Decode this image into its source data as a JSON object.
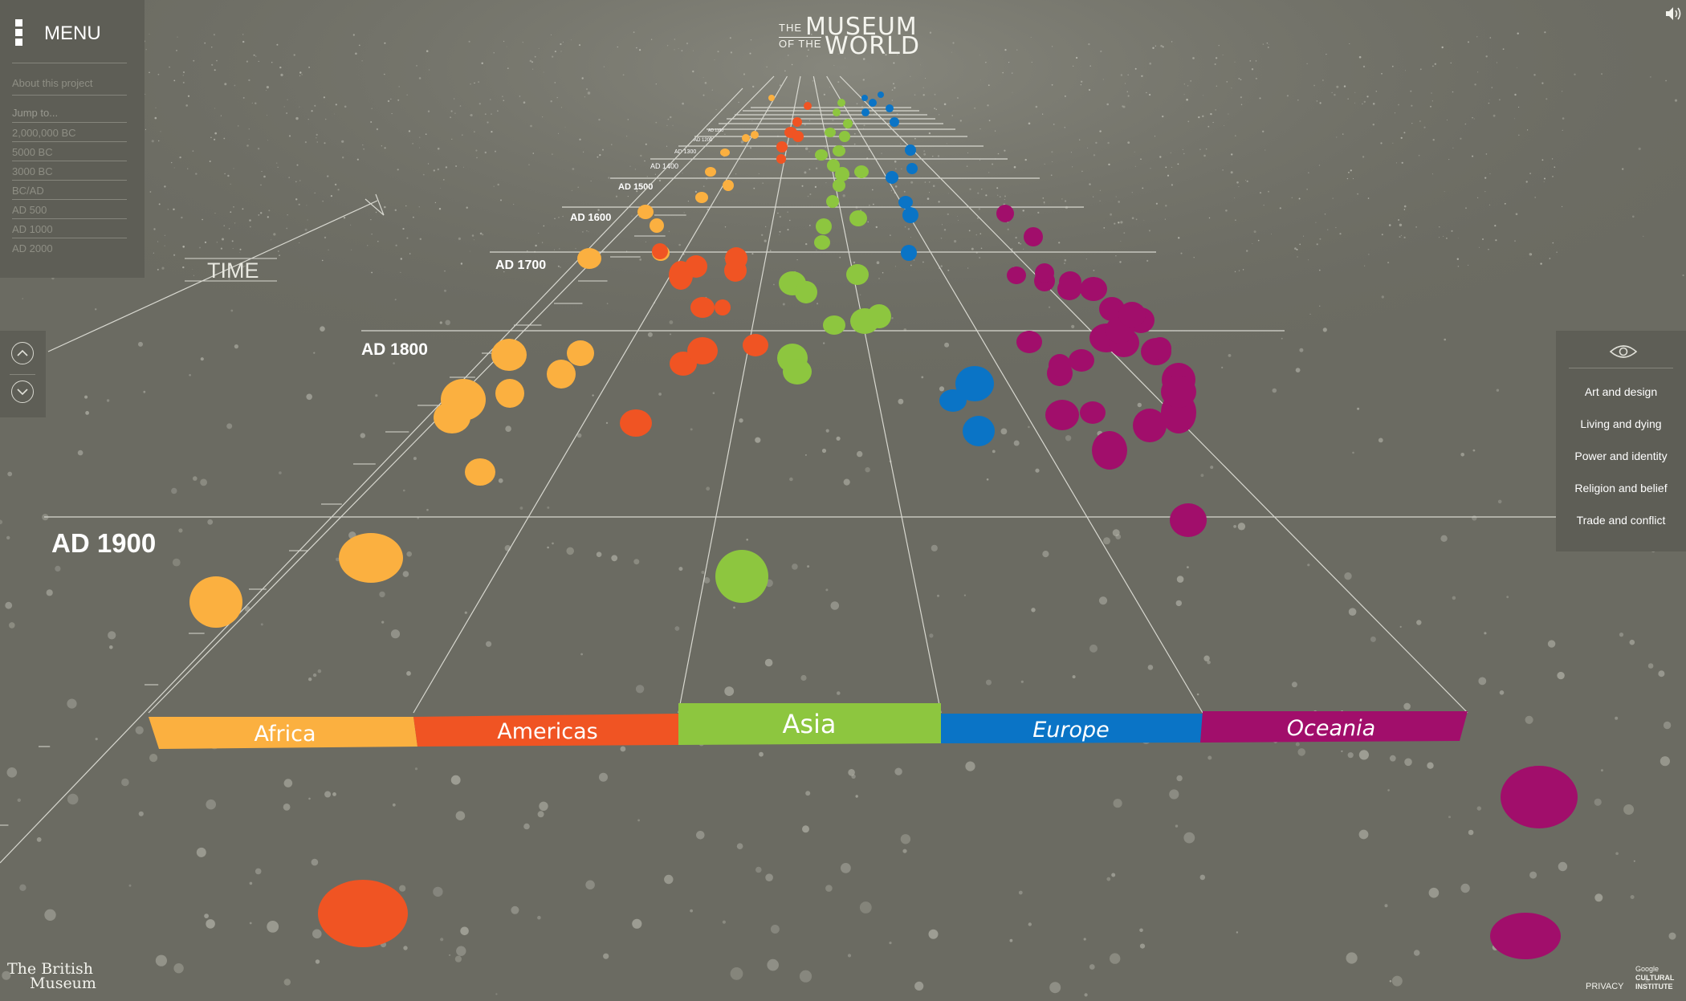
{
  "header": {
    "logo_the": "THE",
    "logo_museum": "MUSEUM",
    "logo_of_the": "OF THE",
    "logo_world": "WORLD"
  },
  "menu": {
    "label": "MENU",
    "about": "About this project",
    "jump_label": "Jump to...",
    "jump_items": [
      "2,000,000 BC",
      "5000 BC",
      "3000 BC",
      "BC/AD",
      "AD 500",
      "AD 1000",
      "AD 2000"
    ]
  },
  "timeline": {
    "axis_label": "TIME",
    "years": [
      "AD 1900",
      "AD 1800",
      "AD 1700",
      "AD 1600",
      "AD 1500",
      "AD 1400",
      "AD 1300",
      "AD 1200",
      "AD 1100"
    ]
  },
  "regions": [
    {
      "name": "Africa",
      "color": "#fbb040"
    },
    {
      "name": "Americas",
      "color": "#f05423"
    },
    {
      "name": "Asia",
      "color": "#8dc63f"
    },
    {
      "name": "Europe",
      "color": "#0a74c6"
    },
    {
      "name": "Oceania",
      "color": "#a10e6b"
    }
  ],
  "filters": {
    "icon": "eye-icon",
    "items": [
      "Art and design",
      "Living and dying",
      "Power and identity",
      "Religion and belief",
      "Trade and conflict"
    ]
  },
  "scroll": {
    "up_icon": "chevron-up-icon",
    "down_icon": "chevron-down-icon"
  },
  "footer": {
    "bm_line1": "The British",
    "bm_line2": "Museum",
    "privacy": "PRIVACY",
    "gci_line1": "Google",
    "gci_line2": "CULTURAL",
    "gci_line3": "INSTITUTE"
  },
  "colors": {
    "background": "#6b6b62",
    "panel": "#5e5e56"
  }
}
